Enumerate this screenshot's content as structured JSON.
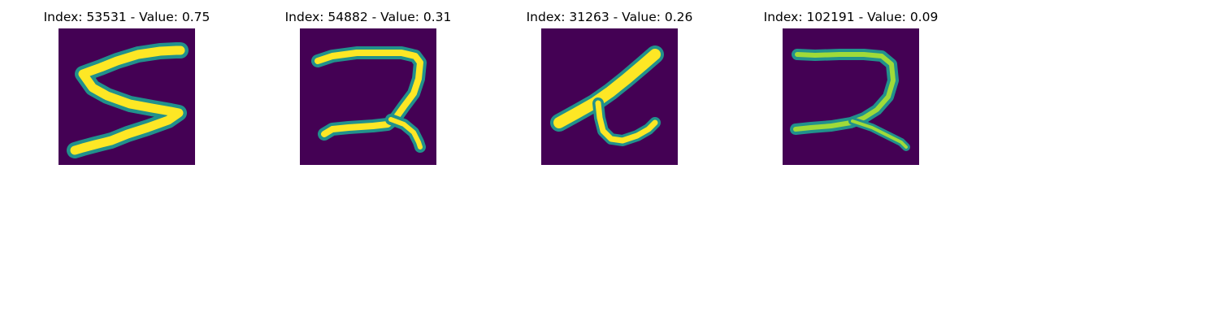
{
  "figure": {
    "background": "#ffffff",
    "colors": {
      "background_low": "#440154",
      "stroke_mid": "#21918c",
      "stroke_high": "#fde725",
      "stroke_light_green": "#a0da39"
    },
    "panels": [
      {
        "title": "Index: 53531 - Value: 0.75",
        "index": 53531,
        "value": 0.75,
        "digit_shape": "5"
      },
      {
        "title": "Index: 54882 - Value: 0.31",
        "index": 54882,
        "value": 0.31,
        "digit_shape": "2"
      },
      {
        "title": "Index: 31263 - Value: 0.26",
        "index": 31263,
        "value": 0.26,
        "digit_shape": "4"
      },
      {
        "title": "Index: 102191 - Value: 0.09",
        "index": 102191,
        "value": 0.09,
        "digit_shape": "2"
      }
    ]
  }
}
